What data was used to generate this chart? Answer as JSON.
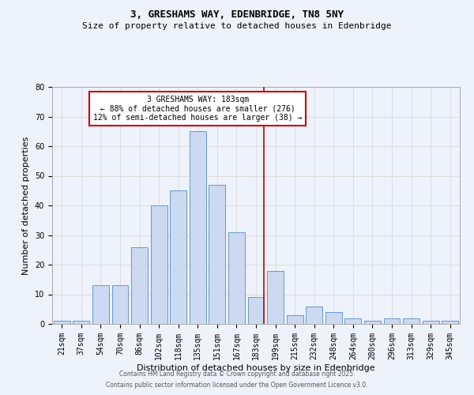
{
  "title1": "3, GRESHAMS WAY, EDENBRIDGE, TN8 5NY",
  "title2": "Size of property relative to detached houses in Edenbridge",
  "xlabel": "Distribution of detached houses by size in Edenbridge",
  "ylabel": "Number of detached properties",
  "categories": [
    "21sqm",
    "37sqm",
    "54sqm",
    "70sqm",
    "86sqm",
    "102sqm",
    "118sqm",
    "135sqm",
    "151sqm",
    "167sqm",
    "183sqm",
    "199sqm",
    "215sqm",
    "232sqm",
    "248sqm",
    "264sqm",
    "280sqm",
    "296sqm",
    "313sqm",
    "329sqm",
    "345sqm"
  ],
  "values": [
    1,
    1,
    13,
    13,
    26,
    40,
    45,
    65,
    47,
    31,
    9,
    18,
    3,
    6,
    4,
    2,
    1,
    2,
    2,
    1,
    1
  ],
  "bar_color": "#ccd9f0",
  "bar_edge_color": "#6699cc",
  "vline_index": 10,
  "vline_color": "#cc0000",
  "annotation_text": "3 GRESHAMS WAY: 183sqm\n← 88% of detached houses are smaller (276)\n12% of semi-detached houses are larger (38) →",
  "annotation_box_color": "#ffffff",
  "annotation_box_edge_color": "#cc0000",
  "ylim": [
    0,
    80
  ],
  "yticks": [
    0,
    10,
    20,
    30,
    40,
    50,
    60,
    70,
    80
  ],
  "grid_color": "#dddddd",
  "background_color": "#eef2fb",
  "footer1": "Contains HM Land Registry data © Crown copyright and database right 2025.",
  "footer2": "Contains public sector information licensed under the Open Government Licence v3.0.",
  "title1_fontsize": 9,
  "title2_fontsize": 8,
  "ylabel_fontsize": 8,
  "xlabel_fontsize": 8,
  "tick_fontsize": 7,
  "annotation_fontsize": 7,
  "footer_fontsize": 5.5
}
